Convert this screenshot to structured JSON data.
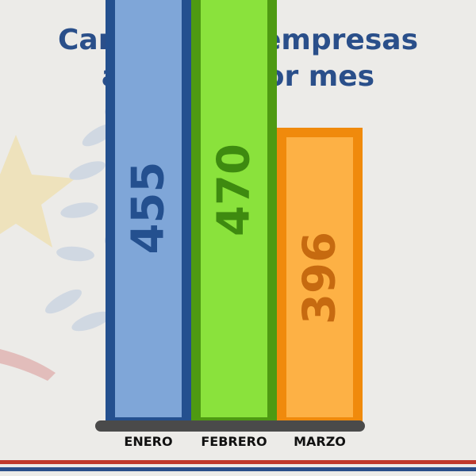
{
  "title_lines": [
    "Cantidad de empresas",
    "abiertas por mes"
  ],
  "colors": {
    "title": "#2a4f8a",
    "base": "#4a4a4a",
    "bars": [
      {
        "fill": "#7fa6d8",
        "border": "#24508f",
        "text": "#24508f"
      },
      {
        "fill": "#8ae23c",
        "border": "#4e9a12",
        "text": "#3e8a10"
      },
      {
        "fill": "#fdb145",
        "border": "#f08a0c",
        "text": "#c66a10"
      }
    ],
    "stripes": [
      "#c0392b",
      "#2a4f8a"
    ]
  },
  "chart_data": {
    "type": "bar",
    "title": "Cantidad de empresas abiertas por mes",
    "categories": [
      "ENERO",
      "FEBRERO",
      "MARZO"
    ],
    "values": [
      455,
      470,
      396
    ],
    "data_labels": [
      "455",
      "470",
      "396"
    ]
  }
}
